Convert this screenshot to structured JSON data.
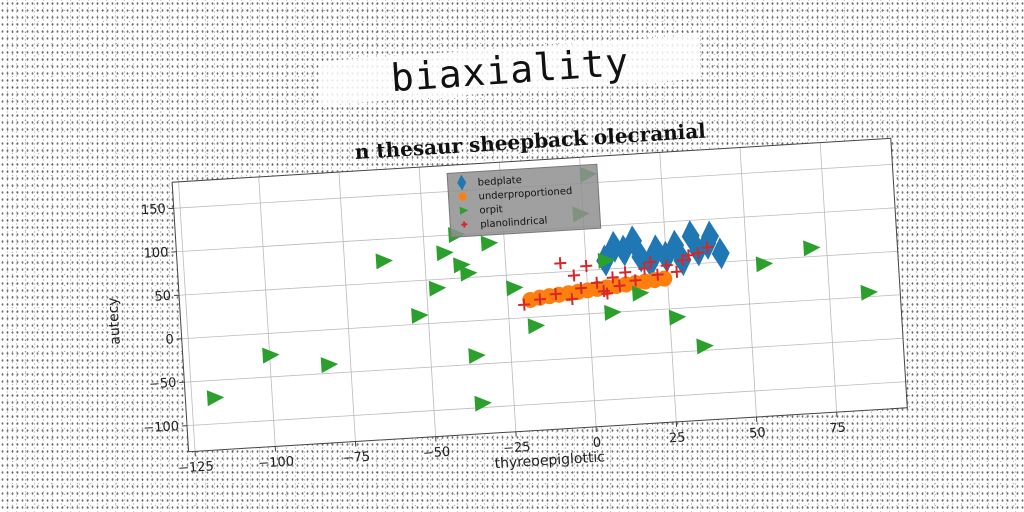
{
  "page_title": "biaxiality",
  "chart_data": {
    "type": "scatter",
    "title": "n thesaur sheepback olecranial",
    "xlabel": "thyreoepiglottic",
    "ylabel": "autecy",
    "xlim": [
      -127,
      97
    ],
    "ylim": [
      -130,
      180
    ],
    "xticks": [
      -125,
      -100,
      -75,
      -50,
      -25,
      0,
      25,
      50,
      75
    ],
    "yticks": [
      -100,
      -50,
      0,
      50,
      100,
      150
    ],
    "grid": true,
    "legend_position": "upper-center",
    "series": [
      {
        "name": "bedplate",
        "marker": "diamond",
        "color": "#1f77b4",
        "points": [
          [
            6,
            60
          ],
          [
            9,
            75
          ],
          [
            12,
            70
          ],
          [
            15,
            80
          ],
          [
            17,
            62
          ],
          [
            20,
            55
          ],
          [
            22,
            68
          ],
          [
            25,
            60
          ],
          [
            28,
            72
          ],
          [
            30,
            55
          ],
          [
            33,
            82
          ],
          [
            35,
            65
          ],
          [
            38,
            72
          ],
          [
            39,
            80
          ],
          [
            42,
            60
          ]
        ]
      },
      {
        "name": "underproportioned",
        "marker": "circle",
        "color": "#ff7f0e",
        "points": [
          [
            -18,
            20
          ],
          [
            -15,
            22
          ],
          [
            -12,
            23
          ],
          [
            -9,
            24
          ],
          [
            -6,
            25
          ],
          [
            -3,
            26
          ],
          [
            0,
            27
          ],
          [
            3,
            28
          ],
          [
            6,
            29
          ],
          [
            9,
            30
          ],
          [
            12,
            31
          ],
          [
            15,
            32
          ],
          [
            18,
            33
          ],
          [
            21,
            34
          ],
          [
            24,
            35
          ]
        ]
      },
      {
        "name": "orpit",
        "marker": "triangle-right",
        "color": "#2ca02c",
        "points": [
          [
            -118,
            -70
          ],
          [
            -100,
            -25
          ],
          [
            -82,
            -40
          ],
          [
            -63,
            75
          ],
          [
            -53,
            10
          ],
          [
            -47,
            40
          ],
          [
            -44,
            80
          ],
          [
            -40,
            100
          ],
          [
            -39,
            65
          ],
          [
            -37,
            55
          ],
          [
            -36,
            -40
          ],
          [
            -35,
            -95
          ],
          [
            -30,
            88
          ],
          [
            -23,
            35
          ],
          [
            -17,
            -10
          ],
          [
            -1,
            115
          ],
          [
            2,
            160
          ],
          [
            6,
            60
          ],
          [
            7,
            0
          ],
          [
            16,
            20
          ],
          [
            27,
            -10
          ],
          [
            35,
            -45
          ],
          [
            55,
            45
          ],
          [
            70,
            60
          ],
          [
            87,
            5
          ]
        ]
      },
      {
        "name": "planolindrical",
        "marker": "plus",
        "color": "#d62728",
        "points": [
          [
            -20,
            15
          ],
          [
            -15,
            20
          ],
          [
            -10,
            25
          ],
          [
            -8,
            60
          ],
          [
            -5,
            18
          ],
          [
            -2,
            30
          ],
          [
            0,
            55
          ],
          [
            3,
            35
          ],
          [
            5,
            25
          ],
          [
            8,
            40
          ],
          [
            10,
            30
          ],
          [
            12,
            45
          ],
          [
            15,
            35
          ],
          [
            18,
            48
          ],
          [
            20,
            55
          ],
          [
            22,
            40
          ],
          [
            25,
            50
          ],
          [
            28,
            42
          ],
          [
            30,
            55
          ],
          [
            32,
            60
          ],
          [
            35,
            62
          ],
          [
            38,
            68
          ],
          [
            -4,
            45
          ],
          [
            6,
            22
          ]
        ]
      }
    ]
  }
}
